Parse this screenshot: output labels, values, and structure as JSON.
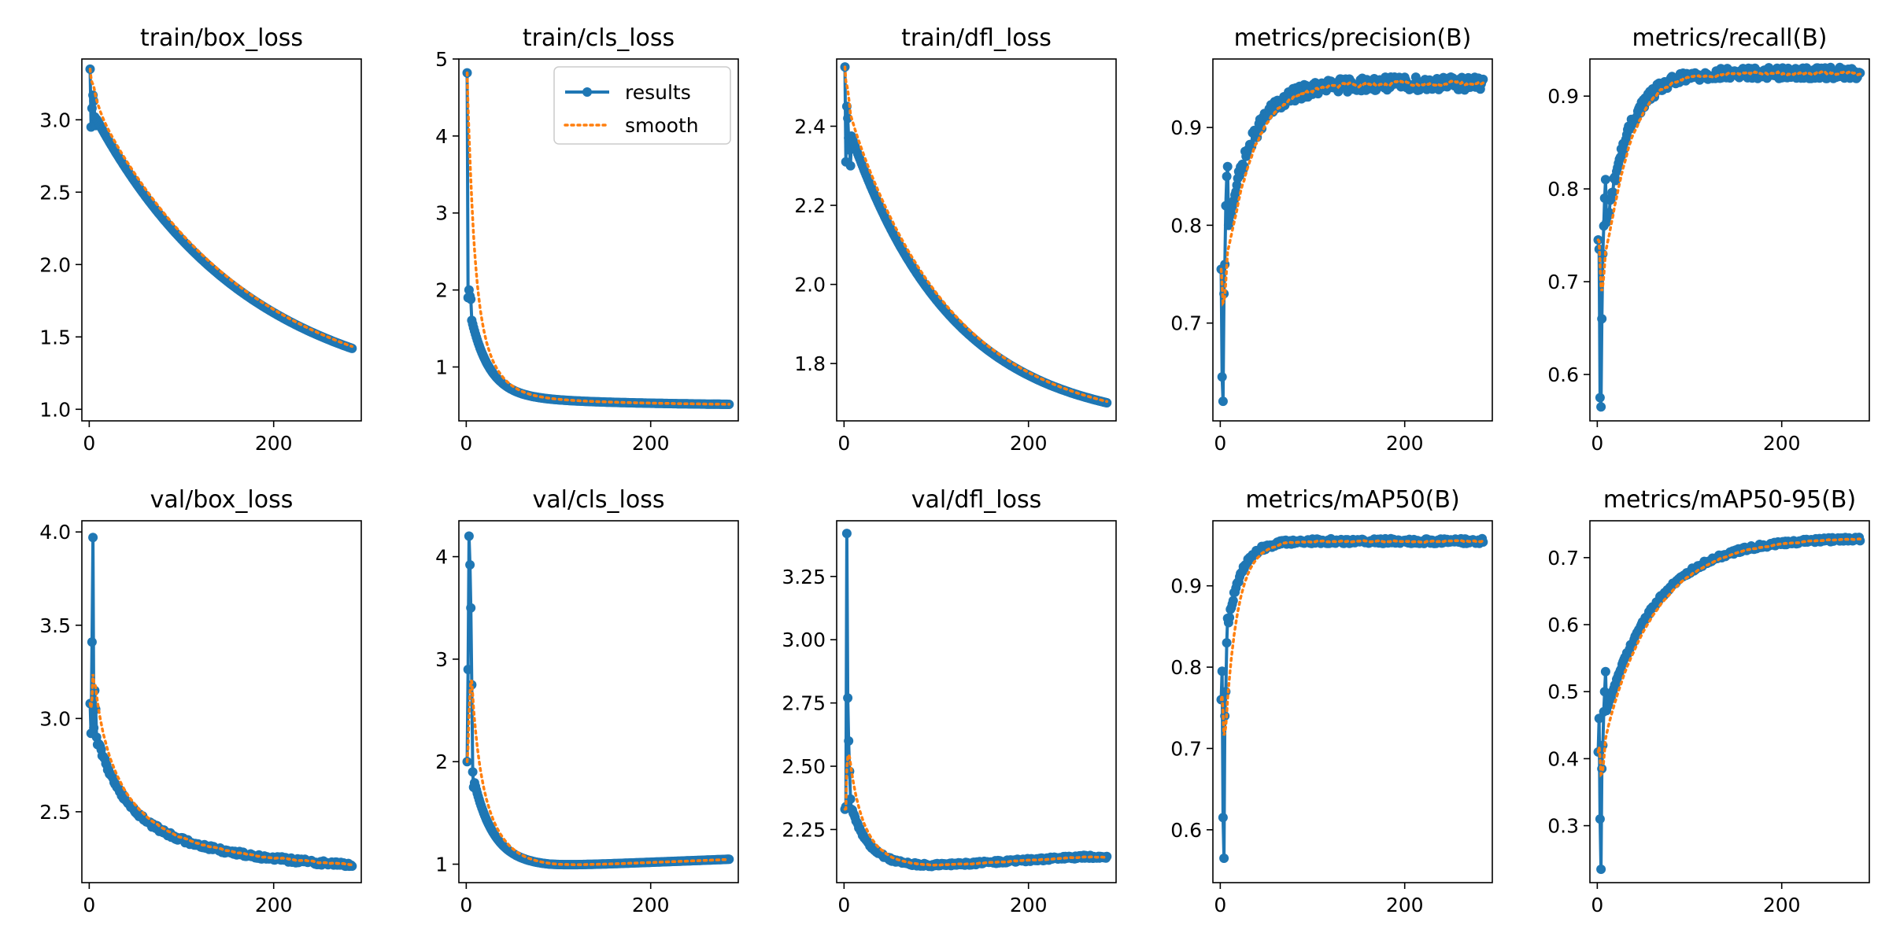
{
  "figure": {
    "background": "#ffffff",
    "results_color": "#1f77b4",
    "smooth_color": "#ff7f0e",
    "legend_location": "top-right of train/cls_loss panel"
  },
  "chart_data": [
    {
      "type": "line",
      "title": "train/box_loss",
      "xlabel": "",
      "ylabel": "",
      "xlim": [
        -8,
        295
      ],
      "ylim": [
        0.92,
        3.42
      ],
      "xticks": [
        0,
        200
      ],
      "yticks": [
        1.0,
        1.5,
        2.0,
        2.5,
        3.0
      ],
      "ytick_labels": [
        "1.0",
        "1.5",
        "2.0",
        "2.5",
        "3.0"
      ],
      "curve": {
        "family": "decay",
        "start": 3.1,
        "end": 1.05,
        "k": 0.006,
        "early": [
          3.35,
          2.95,
          3.08,
          3.17,
          3.13,
          3.02,
          2.96
        ]
      },
      "series": [
        {
          "name": "results",
          "values": []
        },
        {
          "name": "smooth",
          "values": []
        }
      ]
    },
    {
      "type": "line",
      "title": "train/cls_loss",
      "xlabel": "",
      "ylabel": "",
      "xlim": [
        -8,
        295
      ],
      "ylim": [
        0.3,
        5.0
      ],
      "xticks": [
        0,
        200
      ],
      "yticks": [
        1,
        2,
        3,
        4,
        5
      ],
      "ytick_labels": [
        "1",
        "2",
        "3",
        "4",
        "5"
      ],
      "legend": {
        "entries": [
          "results",
          "smooth"
        ]
      },
      "curve": {
        "family": "shock",
        "start": 1.95,
        "end": 0.5,
        "k": 0.05,
        "tail": 0.9,
        "early": [
          4.82,
          1.9,
          2.0,
          1.92,
          1.88
        ]
      },
      "series": [
        {
          "name": "results",
          "values": []
        },
        {
          "name": "smooth",
          "values": []
        }
      ]
    },
    {
      "type": "line",
      "title": "train/dfl_loss",
      "xlabel": "",
      "ylabel": "",
      "xlim": [
        -8,
        295
      ],
      "ylim": [
        1.655,
        2.57
      ],
      "xticks": [
        0,
        200
      ],
      "yticks": [
        1.8,
        2.0,
        2.2,
        2.4
      ],
      "ytick_labels": [
        "1.8",
        "2.0",
        "2.2",
        "2.4"
      ],
      "curve": {
        "family": "decay",
        "start": 2.43,
        "end": 1.64,
        "k": 0.009,
        "early": [
          2.55,
          2.31,
          2.45,
          2.42,
          2.37,
          2.34,
          2.3
        ]
      },
      "series": [
        {
          "name": "results",
          "values": []
        },
        {
          "name": "smooth",
          "values": []
        }
      ]
    },
    {
      "type": "line",
      "title": "metrics/precision(B)",
      "xlabel": "",
      "ylabel": "",
      "xlim": [
        -8,
        295
      ],
      "ylim": [
        0.6,
        0.97
      ],
      "xticks": [
        0,
        200
      ],
      "yticks": [
        0.7,
        0.8,
        0.9
      ],
      "ytick_labels": [
        "0.7",
        "0.8",
        "0.9"
      ],
      "curve": {
        "family": "rise",
        "start": 0.75,
        "end": 0.945,
        "k": 0.035,
        "noise": 0.007,
        "early": [
          0.755,
          0.645,
          0.62,
          0.73,
          0.76,
          0.82,
          0.85,
          0.86
        ]
      },
      "series": [
        {
          "name": "results",
          "values": []
        },
        {
          "name": "smooth",
          "values": []
        }
      ]
    },
    {
      "type": "line",
      "title": "metrics/recall(B)",
      "xlabel": "",
      "ylabel": "",
      "xlim": [
        -8,
        295
      ],
      "ylim": [
        0.55,
        0.94
      ],
      "xticks": [
        0,
        200
      ],
      "yticks": [
        0.6,
        0.7,
        0.8,
        0.9
      ],
      "ytick_labels": [
        "0.6",
        "0.7",
        "0.8",
        "0.9"
      ],
      "curve": {
        "family": "rise",
        "start": 0.68,
        "end": 0.925,
        "k": 0.04,
        "noise": 0.006,
        "early": [
          0.745,
          0.735,
          0.575,
          0.565,
          0.66,
          0.73,
          0.76,
          0.79,
          0.81
        ]
      },
      "series": [
        {
          "name": "results",
          "values": []
        },
        {
          "name": "smooth",
          "values": []
        }
      ]
    },
    {
      "type": "line",
      "title": "val/box_loss",
      "xlabel": "",
      "ylabel": "",
      "xlim": [
        -8,
        295
      ],
      "ylim": [
        2.12,
        4.06
      ],
      "xticks": [
        0,
        200
      ],
      "yticks": [
        2.5,
        3.0,
        3.5,
        4.0
      ],
      "ytick_labels": [
        "2.5",
        "3.0",
        "3.5",
        "4.0"
      ],
      "curve": {
        "family": "shock",
        "start": 3.05,
        "end": 2.18,
        "k": 0.035,
        "tail": 0.6,
        "noise": 0.012,
        "early": [
          3.08,
          2.92,
          3.41,
          3.97,
          2.95,
          3.15,
          3.05,
          2.9,
          2.86
        ]
      },
      "series": [
        {
          "name": "results",
          "values": []
        },
        {
          "name": "smooth",
          "values": []
        }
      ]
    },
    {
      "type": "line",
      "title": "val/cls_loss",
      "xlabel": "",
      "ylabel": "",
      "xlim": [
        -8,
        295
      ],
      "ylim": [
        0.82,
        4.35
      ],
      "xticks": [
        0,
        200
      ],
      "yticks": [
        1,
        2,
        3,
        4
      ],
      "ytick_labels": [
        "1",
        "2",
        "3",
        "4"
      ],
      "curve": {
        "family": "ushape",
        "start": 2.2,
        "end": 1.05,
        "floor": 0.98,
        "k": 0.045,
        "rise": 0.00035,
        "early": [
          2.0,
          2.9,
          4.2,
          3.92,
          3.5,
          2.75,
          1.9,
          1.75
        ]
      },
      "series": [
        {
          "name": "results",
          "values": []
        },
        {
          "name": "smooth",
          "values": []
        }
      ]
    },
    {
      "type": "line",
      "title": "val/dfl_loss",
      "xlabel": "",
      "ylabel": "",
      "xlim": [
        -8,
        295
      ],
      "ylim": [
        2.04,
        3.47
      ],
      "xticks": [
        0,
        200
      ],
      "yticks": [
        2.25,
        2.5,
        2.75,
        3.0,
        3.25
      ],
      "ytick_labels": [
        "2.25",
        "2.50",
        "2.75",
        "3.00",
        "3.25"
      ],
      "curve": {
        "family": "ushape",
        "start": 2.45,
        "end": 2.14,
        "floor": 2.105,
        "k": 0.05,
        "rise": 0.00022,
        "noise": 0.006,
        "early": [
          2.33,
          2.34,
          3.42,
          2.77,
          2.6,
          2.48,
          2.37,
          2.33
        ]
      },
      "series": [
        {
          "name": "results",
          "values": []
        },
        {
          "name": "smooth",
          "values": []
        }
      ]
    },
    {
      "type": "line",
      "title": "metrics/mAP50(B)",
      "xlabel": "",
      "ylabel": "",
      "xlim": [
        -8,
        295
      ],
      "ylim": [
        0.535,
        0.98
      ],
      "xticks": [
        0,
        200
      ],
      "yticks": [
        0.6,
        0.7,
        0.8,
        0.9
      ],
      "ytick_labels": [
        "0.6",
        "0.7",
        "0.8",
        "0.9"
      ],
      "curve": {
        "family": "rise",
        "start": 0.78,
        "end": 0.955,
        "k": 0.065,
        "noise": 0.003,
        "early": [
          0.76,
          0.795,
          0.615,
          0.565,
          0.74,
          0.77,
          0.83,
          0.86
        ]
      },
      "series": [
        {
          "name": "results",
          "values": []
        },
        {
          "name": "smooth",
          "values": []
        }
      ]
    },
    {
      "type": "line",
      "title": "metrics/mAP50-95(B)",
      "xlabel": "",
      "ylabel": "",
      "xlim": [
        -8,
        295
      ],
      "ylim": [
        0.215,
        0.755
      ],
      "xticks": [
        0,
        200
      ],
      "yticks": [
        0.3,
        0.4,
        0.5,
        0.6,
        0.7
      ],
      "ytick_labels": [
        "0.3",
        "0.4",
        "0.5",
        "0.6",
        "0.7"
      ],
      "curve": {
        "family": "rise",
        "start": 0.42,
        "end": 0.73,
        "k": 0.018,
        "noise": 0.003,
        "early": [
          0.41,
          0.46,
          0.31,
          0.235,
          0.385,
          0.42,
          0.47,
          0.5,
          0.53
        ]
      },
      "series": [
        {
          "name": "results",
          "values": []
        },
        {
          "name": "smooth",
          "values": []
        }
      ]
    }
  ]
}
